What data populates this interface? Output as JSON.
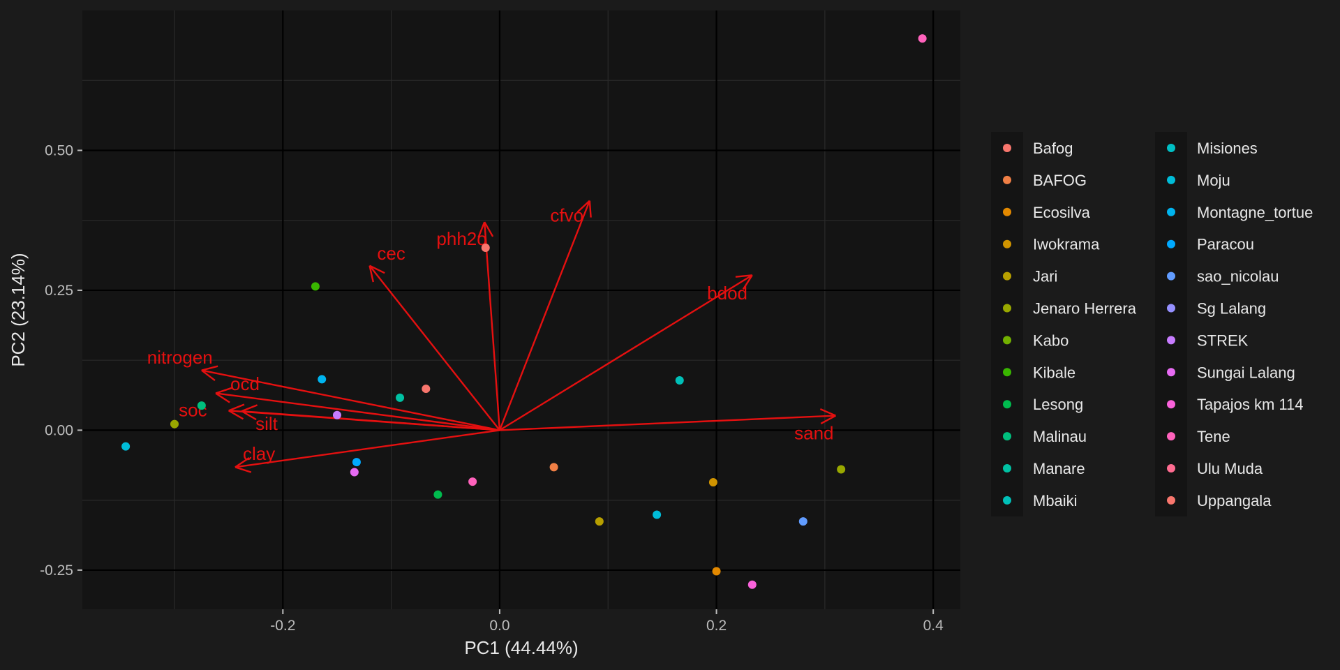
{
  "chart_data": {
    "type": "scatter",
    "subtype": "pca-biplot",
    "title": "",
    "xlabel": "PC1 (44.44%)",
    "ylabel": "PC2 (23.14%)",
    "xlim": [
      -0.385,
      0.425
    ],
    "ylim": [
      -0.32,
      0.75
    ],
    "x_ticks": [
      -0.2,
      0.0,
      0.2,
      0.4
    ],
    "x_tick_labels": [
      "-0.2",
      "0.0",
      "0.2",
      "0.4"
    ],
    "y_ticks": [
      -0.25,
      0.0,
      0.25,
      0.5
    ],
    "y_tick_labels": [
      "-0.25",
      "0.00",
      "0.25",
      "0.50"
    ],
    "grid": true,
    "legend_position": "right",
    "colors": {
      "background": "#1b1b1b",
      "panel": "#141414",
      "grid_major": "#000000",
      "grid_minor": "#2a2a2a",
      "axis_text": "#bdbdbd",
      "axis_title": "#e8e8e8",
      "legend_key_bg": "#141414",
      "arrow": "#e51010"
    },
    "series": [
      {
        "name": "Bafog",
        "color": "#f8766d",
        "x": [
          -0.068
        ],
        "y": [
          0.074
        ]
      },
      {
        "name": "BAFOG",
        "color": "#f07f45",
        "x": [
          0.05
        ],
        "y": [
          -0.066
        ]
      },
      {
        "name": "Ecosilva",
        "color": "#e38900",
        "x": [
          0.2
        ],
        "y": [
          -0.252
        ]
      },
      {
        "name": "Iwokrama",
        "color": "#d09400",
        "x": [
          0.197
        ],
        "y": [
          -0.093
        ]
      },
      {
        "name": "Jari",
        "color": "#b79f00",
        "x": [
          0.092
        ],
        "y": [
          -0.163
        ]
      },
      {
        "name": "Jenaro Herrera",
        "color": "#99a800",
        "x": [
          -0.3,
          0.315
        ],
        "y": [
          0.011,
          -0.07
        ]
      },
      {
        "name": "Kabo",
        "color": "#72b000",
        "x": [],
        "y": []
      },
      {
        "name": "Kibale",
        "color": "#39b600",
        "x": [
          -0.17
        ],
        "y": [
          0.257
        ]
      },
      {
        "name": "Lesong",
        "color": "#00bb4e",
        "x": [
          -0.057
        ],
        "y": [
          -0.115
        ]
      },
      {
        "name": "Malinau",
        "color": "#00bf7d",
        "x": [
          -0.275
        ],
        "y": [
          0.044
        ]
      },
      {
        "name": "Manare",
        "color": "#00c1a3",
        "x": [
          -0.092
        ],
        "y": [
          0.058
        ]
      },
      {
        "name": "Mbaiki",
        "color": "#00c0b8",
        "x": [
          0.166
        ],
        "y": [
          0.089
        ]
      },
      {
        "name": "Misiones",
        "color": "#00bfc4",
        "x": [],
        "y": []
      },
      {
        "name": "Moju",
        "color": "#00bcd8",
        "x": [
          -0.345,
          0.145
        ],
        "y": [
          -0.029,
          -0.151
        ]
      },
      {
        "name": "Montagne_tortue",
        "color": "#00b4ef",
        "x": [
          -0.164
        ],
        "y": [
          0.091
        ]
      },
      {
        "name": "Paracou",
        "color": "#00a9ff",
        "x": [
          -0.132
        ],
        "y": [
          -0.057
        ]
      },
      {
        "name": "sao_nicolau",
        "color": "#619cff",
        "x": [
          0.28
        ],
        "y": [
          -0.163
        ]
      },
      {
        "name": "Sg Lalang",
        "color": "#9590ff",
        "x": [],
        "y": []
      },
      {
        "name": "STREK",
        "color": "#c77cff",
        "x": [
          -0.15
        ],
        "y": [
          0.027
        ]
      },
      {
        "name": "Sungai Lalang",
        "color": "#e76bf3",
        "x": [
          -0.134
        ],
        "y": [
          -0.075
        ]
      },
      {
        "name": "Tapajos km 114",
        "color": "#fa62db",
        "x": [
          0.233
        ],
        "y": [
          -0.276
        ]
      },
      {
        "name": "Tene",
        "color": "#ff62bc",
        "x": [
          0.39,
          -0.025
        ],
        "y": [
          0.7,
          -0.092
        ]
      },
      {
        "name": "Ulu Muda",
        "color": "#ff6c91",
        "x": [],
        "y": []
      },
      {
        "name": "Uppangala",
        "color": "#f8766d",
        "x": [
          -0.013
        ],
        "y": [
          0.326
        ]
      }
    ],
    "loadings": [
      {
        "name": "sand",
        "x": 0.31,
        "y": 0.026,
        "label_x": 0.29,
        "label_y": -0.005
      },
      {
        "name": "bdod",
        "x": 0.233,
        "y": 0.277,
        "label_x": 0.21,
        "label_y": 0.245
      },
      {
        "name": "cfvo",
        "x": 0.083,
        "y": 0.41,
        "label_x": 0.062,
        "label_y": 0.384
      },
      {
        "name": "phh2o",
        "x": -0.014,
        "y": 0.372,
        "label_x": -0.035,
        "label_y": 0.342
      },
      {
        "name": "cec",
        "x": -0.12,
        "y": 0.294,
        "label_x": -0.1,
        "label_y": 0.316
      },
      {
        "name": "nitrogen",
        "x": -0.275,
        "y": 0.107,
        "label_x": -0.295,
        "label_y": 0.13
      },
      {
        "name": "ocd",
        "x": -0.262,
        "y": 0.066,
        "label_x": -0.235,
        "label_y": 0.083
      },
      {
        "name": "soc",
        "x": -0.25,
        "y": 0.035,
        "label_x": -0.283,
        "label_y": 0.036
      },
      {
        "name": "silt",
        "x": -0.238,
        "y": 0.034,
        "label_x": -0.215,
        "label_y": 0.012
      },
      {
        "name": "clay",
        "x": -0.244,
        "y": -0.066,
        "label_x": -0.222,
        "label_y": -0.042
      }
    ]
  }
}
